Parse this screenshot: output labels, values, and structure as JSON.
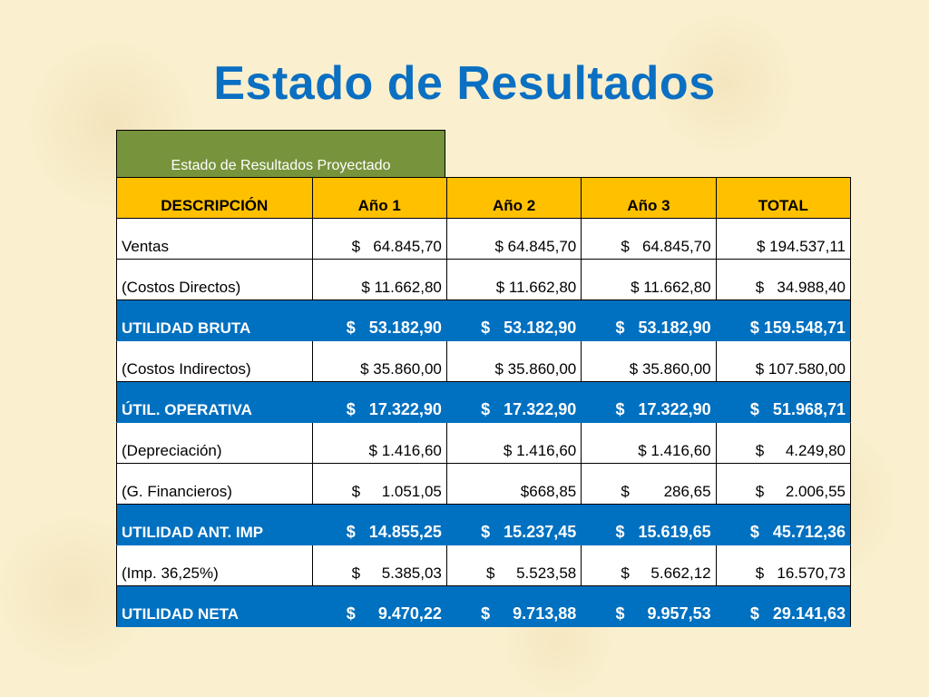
{
  "page": {
    "title": "Estado de Resultados"
  },
  "table": {
    "caption": "Estado de Resultados Proyectado",
    "headers": [
      "DESCRIPCIÓN",
      "Año 1",
      "Año 2",
      "Año 3",
      "TOTAL"
    ],
    "rows": [
      {
        "label": "Ventas",
        "style": "plain",
        "values": [
          "$   64.845,70",
          "$ 64.845,70",
          "$   64.845,70",
          "$ 194.537,11"
        ]
      },
      {
        "label": "(Costos Directos)",
        "style": "plain",
        "values": [
          "$ 11.662,80",
          "$ 11.662,80",
          "$ 11.662,80",
          "$   34.988,40"
        ]
      },
      {
        "label": "UTILIDAD BRUTA",
        "style": "highlight",
        "values": [
          "$   53.182,90",
          "$   53.182,90",
          "$   53.182,90",
          "$ 159.548,71"
        ]
      },
      {
        "label": "(Costos Indirectos)",
        "style": "plain",
        "values": [
          "$ 35.860,00",
          "$ 35.860,00",
          "$ 35.860,00",
          "$ 107.580,00"
        ]
      },
      {
        "label": "ÚTIL. OPERATIVA",
        "style": "highlight",
        "values": [
          "$   17.322,90",
          "$   17.322,90",
          "$   17.322,90",
          "$   51.968,71"
        ]
      },
      {
        "label": "(Depreciación)",
        "style": "plain",
        "values": [
          "$ 1.416,60",
          "$ 1.416,60",
          "$ 1.416,60",
          "$     4.249,80"
        ]
      },
      {
        "label": "(G. Financieros)",
        "style": "plain",
        "values": [
          "$     1.051,05",
          "$668,85",
          "$        286,65",
          "$     2.006,55"
        ]
      },
      {
        "label": "UTILIDAD ANT. IMP",
        "style": "highlight",
        "values": [
          "$   14.855,25",
          "$   15.237,45",
          "$   15.619,65",
          "$   45.712,36"
        ]
      },
      {
        "label": "(Imp. 36,25%)",
        "style": "plain",
        "values": [
          "$     5.385,03",
          "$     5.523,58",
          "$     5.662,12",
          "$   16.570,73"
        ]
      },
      {
        "label": "UTILIDAD NETA",
        "style": "highlight",
        "values": [
          "$     9.470,22",
          "$     9.713,88",
          "$     9.957,53",
          "$   29.141,63"
        ]
      }
    ]
  },
  "colors": {
    "title": "#0b6fc2",
    "caption_bg": "#77933c",
    "header_bg": "#ffc000",
    "highlight_bg": "#0070c0",
    "background": "#faf0cf"
  }
}
